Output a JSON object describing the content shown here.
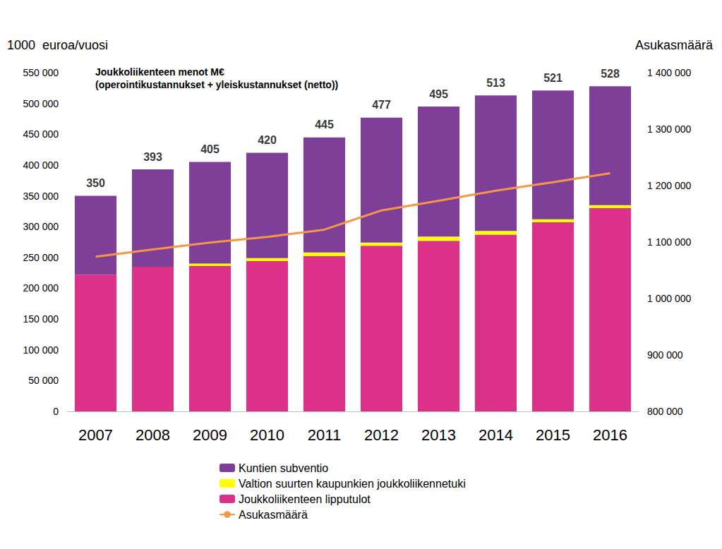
{
  "chart_data": {
    "type": "bar",
    "title": "Joukkoliikenteen menot M€",
    "subtitle": "(operointikustannukset + yleiskustannukset (netto))",
    "y_label": "1000  euroa/vuosi",
    "y2_label": "Asukasmäärä",
    "stacked": true,
    "grid": false,
    "legend": "bottom",
    "categories": [
      "2007",
      "2008",
      "2009",
      "2010",
      "2011",
      "2012",
      "2013",
      "2014",
      "2015",
      "2016"
    ],
    "series": [
      {
        "name": "Kuntien subventio",
        "type": "bar",
        "color": "#7E3F98",
        "values": [
          128000,
          158000,
          165000,
          171000,
          187000,
          203000,
          211000,
          220000,
          209000,
          193000
        ]
      },
      {
        "name": "Valtion suurten kaupunkien joukkoliikennetuki",
        "type": "bar",
        "color": "#FFFF00",
        "values": [
          0,
          0,
          4000,
          5000,
          6000,
          5000,
          7000,
          6000,
          5000,
          5000
        ]
      },
      {
        "name": "Joukkoliikenteen lipputulot",
        "type": "bar",
        "color": "#DB3189",
        "values": [
          222000,
          235000,
          236000,
          244000,
          252000,
          269000,
          277000,
          287000,
          307000,
          330000
        ]
      },
      {
        "name": "Asukasmäärä",
        "type": "line",
        "axis": "y2",
        "color": "#F79646",
        "marker": "none",
        "line_style": "solid",
        "values": [
          1074000,
          1087000,
          1099000,
          1109000,
          1122000,
          1156000,
          1173000,
          1191000,
          1206000,
          1222000
        ]
      }
    ],
    "totals": {
      "values": [
        350000,
        393000,
        405000,
        420000,
        445000,
        477000,
        495000,
        513000,
        521000,
        528000
      ],
      "value_labels": [
        "350",
        "393",
        "405",
        "420",
        "445",
        "477",
        "495",
        "513",
        "521",
        "528"
      ]
    },
    "ylim": [
      0,
      550000
    ],
    "yticks": [
      0,
      {
        "value": 50000,
        "label": "50 000"
      },
      {
        "value": 100000,
        "label": "100 000"
      },
      {
        "value": 150000,
        "label": "150 000"
      },
      {
        "value": 200000,
        "label": "200 000"
      },
      {
        "value": 250000,
        "label": "250 000"
      },
      {
        "value": 300000,
        "label": "300 000"
      },
      {
        "value": 350000,
        "label": "350 000"
      },
      {
        "value": 400000,
        "label": "400 000"
      },
      {
        "value": 450000,
        "label": "450 000"
      },
      {
        "value": 500000,
        "label": "500 000"
      },
      {
        "value": 550000,
        "label": "550 000"
      }
    ],
    "y2lim": [
      800000,
      1400000
    ],
    "y2ticks": [
      {
        "value": 800000,
        "label": "800 000"
      },
      {
        "value": 900000,
        "label": "900 000"
      },
      {
        "value": 1000000,
        "label": "1 000 000"
      },
      {
        "value": 1100000,
        "label": "1 100 000"
      },
      {
        "value": 1200000,
        "label": "1 200 000"
      },
      {
        "value": 1300000,
        "label": "1 300 000"
      },
      {
        "value": 1400000,
        "label": "1 400 000"
      }
    ]
  }
}
